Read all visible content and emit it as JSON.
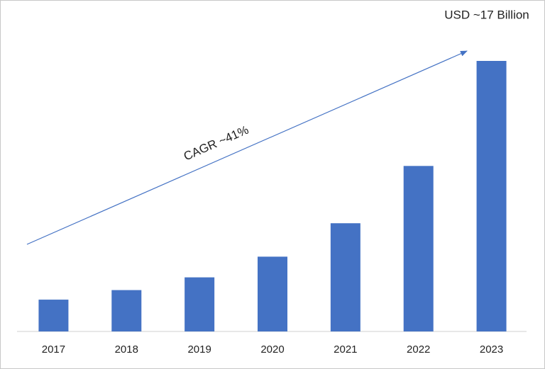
{
  "chart_data": {
    "type": "bar",
    "categories": [
      "2017",
      "2018",
      "2019",
      "2020",
      "2021",
      "2022",
      "2023"
    ],
    "values": [
      2.0,
      2.6,
      3.4,
      4.7,
      6.8,
      10.4,
      17
    ],
    "value_labels": [
      null,
      null,
      null,
      null,
      null,
      null,
      "USD ~17 Billion"
    ],
    "color": "#4472c4",
    "annotations": [
      "CAGR ~41%"
    ]
  }
}
